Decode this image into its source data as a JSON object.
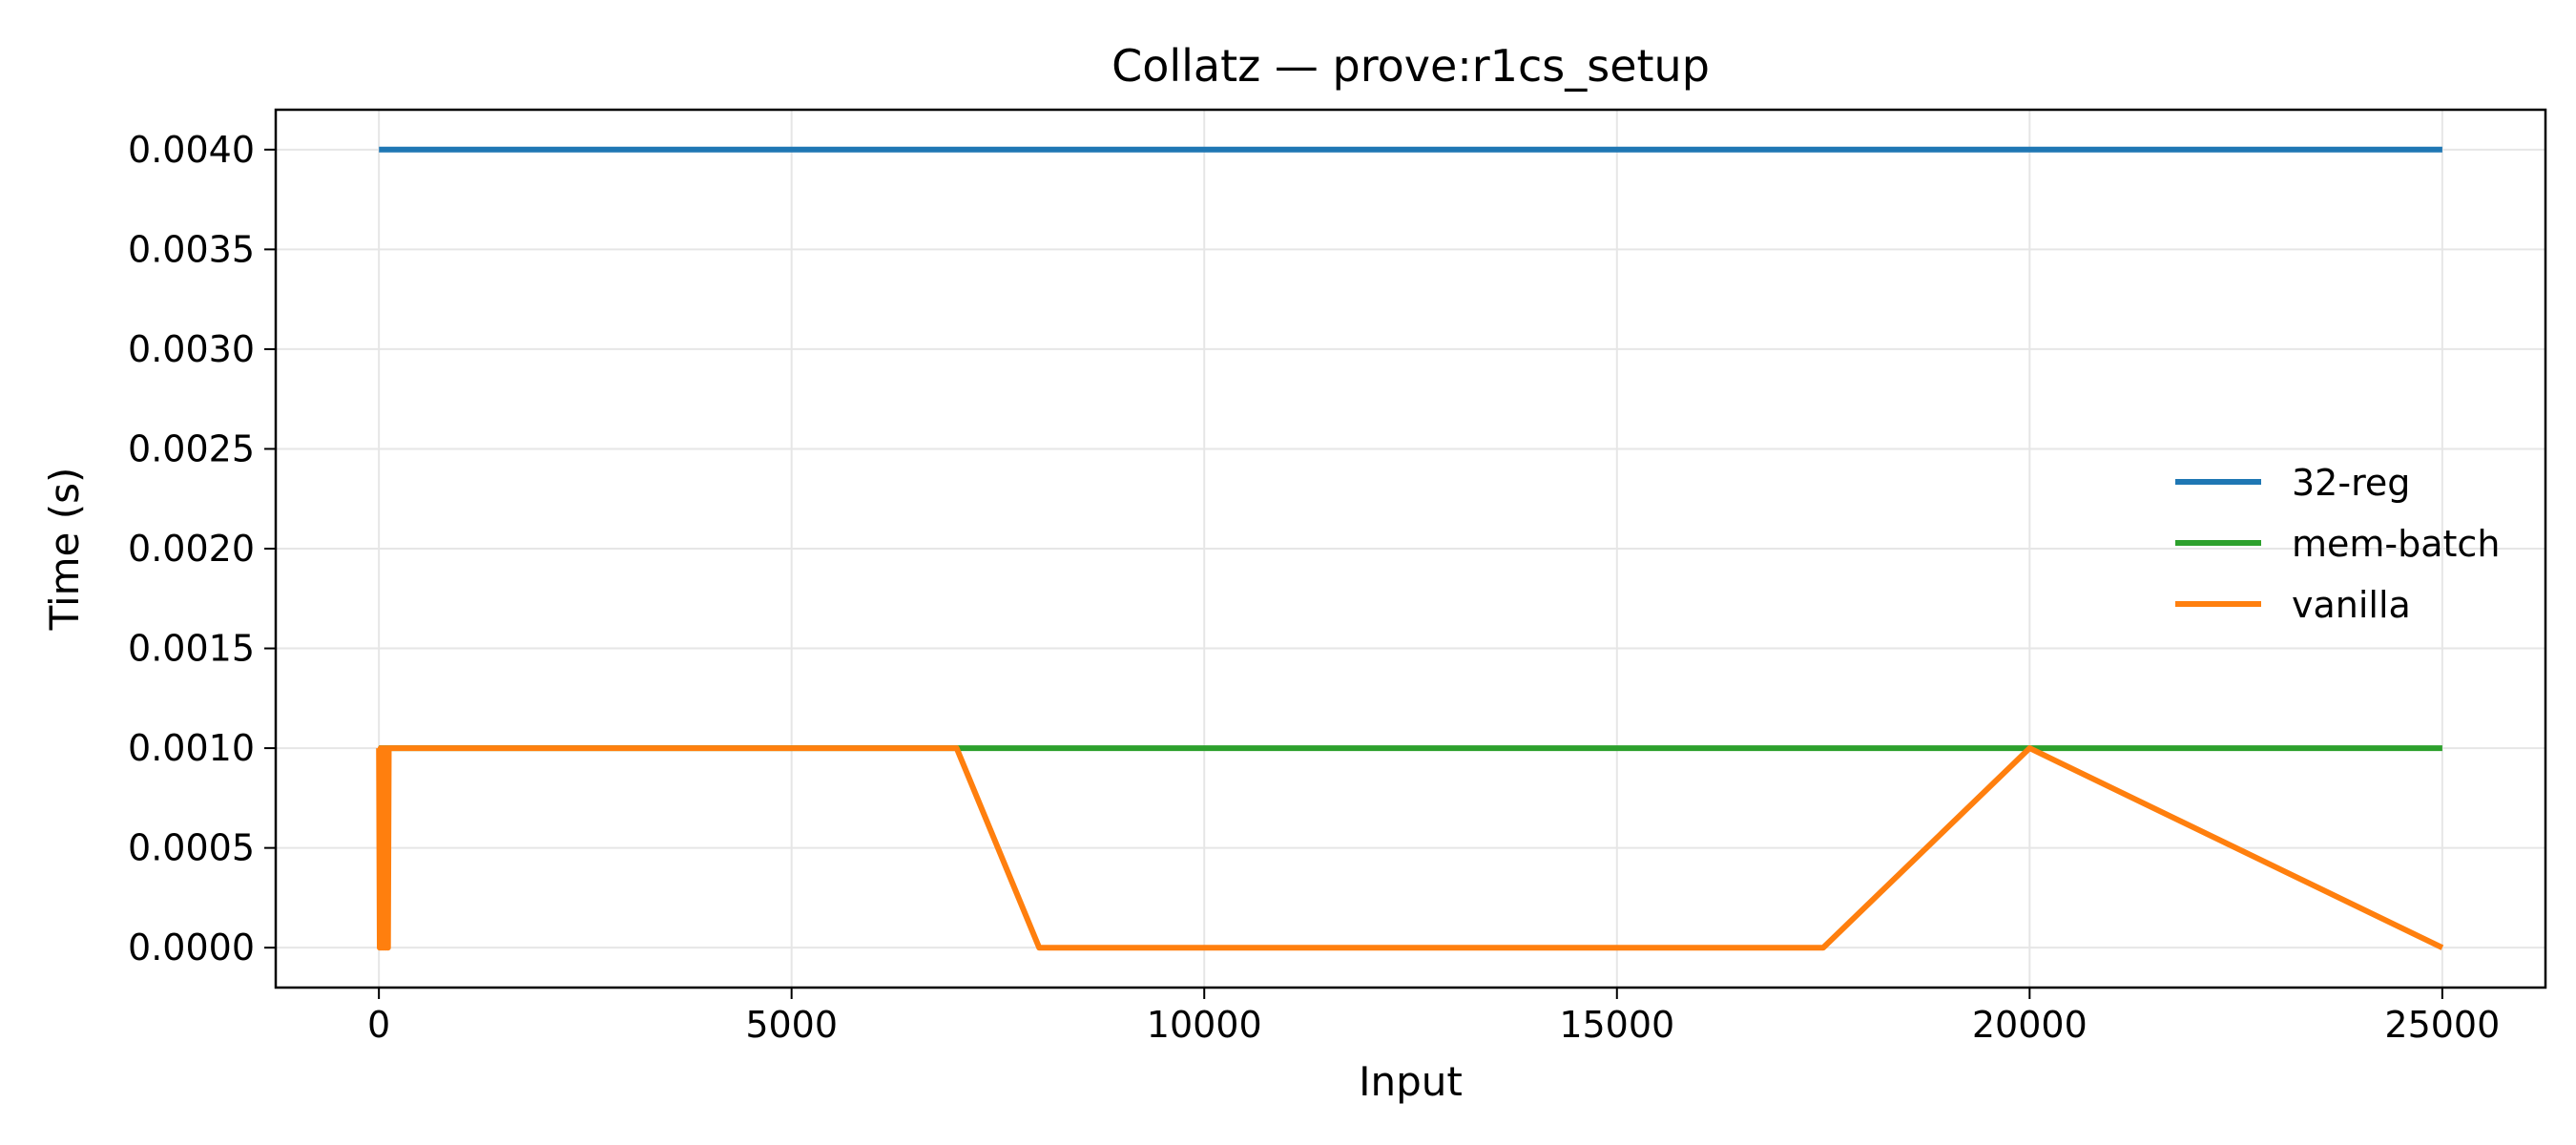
{
  "chart_data": {
    "type": "line",
    "title": "Collatz — prove:r1cs_setup",
    "xlabel": "Input",
    "ylabel": "Time (s)",
    "xlim": [
      -1250,
      26250
    ],
    "ylim": [
      -0.0002,
      0.0042
    ],
    "xticks": [
      0,
      5000,
      10000,
      15000,
      20000,
      25000
    ],
    "xtick_labels": [
      "0",
      "5000",
      "10000",
      "15000",
      "20000",
      "25000"
    ],
    "yticks": [
      0,
      0.0005,
      0.001,
      0.0015,
      0.002,
      0.0025,
      0.003,
      0.0035,
      0.004
    ],
    "ytick_labels": [
      "0.0000",
      "0.0005",
      "0.0010",
      "0.0015",
      "0.0020",
      "0.0025",
      "0.0030",
      "0.0035",
      "0.0040"
    ],
    "grid": true,
    "legend_position": "center-right",
    "series": [
      {
        "name": "32-reg",
        "color": "#1f77b4",
        "x": [
          1,
          25000
        ],
        "y": [
          0.004,
          0.004
        ]
      },
      {
        "name": "mem-batch",
        "color": "#2ca02c",
        "x": [
          1,
          25000
        ],
        "y": [
          0.001,
          0.001
        ]
      },
      {
        "name": "vanilla",
        "color": "#ff7f0e",
        "x": [
          1,
          10,
          20,
          30,
          40,
          50,
          60,
          70,
          80,
          90,
          100,
          110,
          120,
          7000,
          8000,
          17500,
          20000,
          25000
        ],
        "y": [
          0.001,
          0,
          0.001,
          0,
          0.001,
          0,
          0.001,
          0,
          0.001,
          0,
          0.001,
          0,
          0.001,
          0.001,
          0,
          0,
          0.001,
          0
        ]
      }
    ]
  }
}
